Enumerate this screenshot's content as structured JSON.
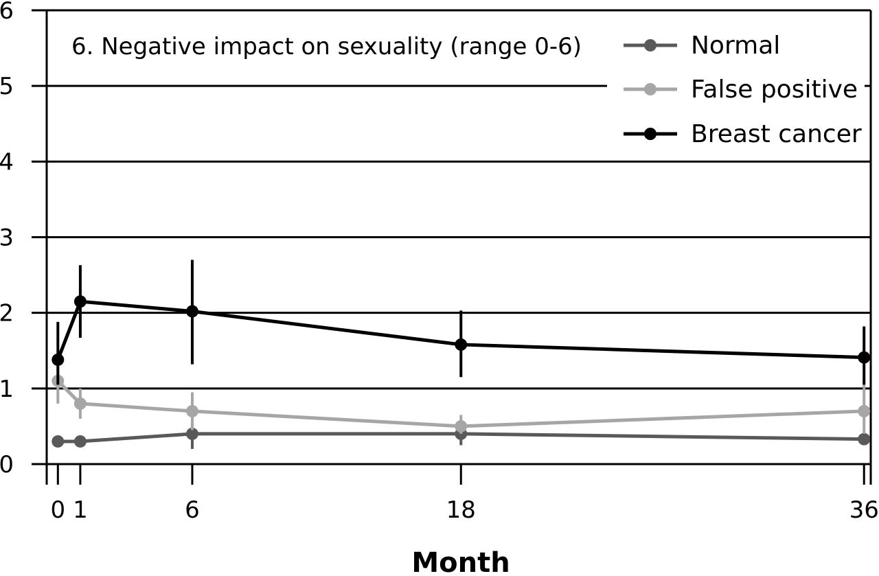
{
  "chart_data": {
    "type": "line",
    "title": "6. Negative impact on sexuality (range 0-6)",
    "xlabel": "Month",
    "ylabel": "",
    "x": [
      0,
      1,
      6,
      18,
      36
    ],
    "x_tick_labels": [
      "0",
      "1",
      "6",
      "18",
      "36"
    ],
    "xlim": [
      -0.5,
      36.3
    ],
    "ylim": [
      0,
      6
    ],
    "y_tick_labels": [
      "0",
      "1",
      "2",
      "3",
      "4",
      "5",
      "6"
    ],
    "grid": "horizontal",
    "legend_position": "top-right",
    "series": [
      {
        "name": "Normal",
        "color": "#595959",
        "values": [
          0.3,
          0.3,
          0.4,
          0.4,
          0.33
        ],
        "error_low": [
          0.25,
          0.25,
          0.2,
          0.25,
          0.25
        ],
        "error_high": [
          0.35,
          0.35,
          0.55,
          0.5,
          0.4
        ]
      },
      {
        "name": "False positive",
        "color": "#a6a6a6",
        "values": [
          1.1,
          0.8,
          0.7,
          0.5,
          0.7
        ],
        "error_low": [
          0.8,
          0.6,
          0.45,
          0.4,
          0.4
        ],
        "error_high": [
          1.35,
          1.0,
          0.95,
          0.65,
          1.1
        ]
      },
      {
        "name": "Breast cancer",
        "color": "#000000",
        "values": [
          1.38,
          2.15,
          2.02,
          1.58,
          1.41
        ],
        "error_low": [
          1.05,
          1.67,
          1.32,
          1.15,
          1.05
        ],
        "error_high": [
          1.88,
          2.63,
          2.7,
          2.03,
          1.82
        ]
      }
    ]
  }
}
